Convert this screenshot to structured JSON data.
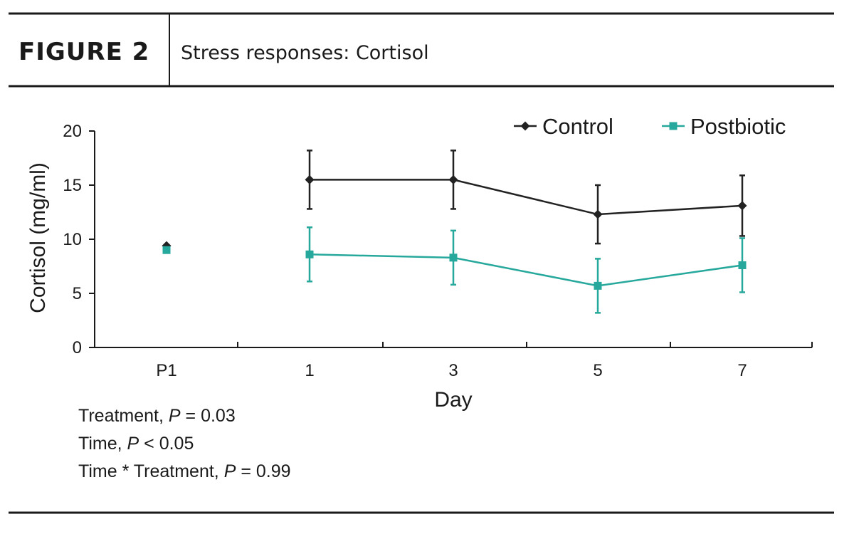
{
  "figure": {
    "label": "FIGURE 2",
    "title": "Stress responses: Cortisol"
  },
  "chart_data": {
    "type": "line",
    "title": "Stress responses: Cortisol",
    "xlabel": "Day",
    "ylabel": "Cortisol (mg/ml)",
    "categories": [
      "P1",
      "1",
      "3",
      "5",
      "7"
    ],
    "ylim": [
      0,
      20
    ],
    "yticks": [
      0,
      5,
      10,
      15,
      20
    ],
    "grid": false,
    "legend_position": "top-right",
    "series": [
      {
        "name": "Control",
        "color": "#222222",
        "marker": "diamond",
        "values": [
          9.4,
          15.5,
          15.5,
          12.3,
          13.1
        ],
        "error": [
          null,
          2.7,
          2.7,
          2.7,
          2.8
        ]
      },
      {
        "name": "Postbiotic",
        "color": "#27a89c",
        "marker": "square",
        "values": [
          9.0,
          8.6,
          8.3,
          5.7,
          7.6
        ],
        "error": [
          null,
          2.5,
          2.5,
          2.5,
          2.5
        ]
      }
    ],
    "connected_from_index": 1
  },
  "stats": [
    {
      "pre": "Treatment, ",
      "p": "P",
      "post": " = 0.03"
    },
    {
      "pre": "Time, ",
      "p": "P",
      "post": " < 0.05"
    },
    {
      "pre": "Time * Treatment, ",
      "p": "P",
      "post": " = 0.99"
    }
  ]
}
